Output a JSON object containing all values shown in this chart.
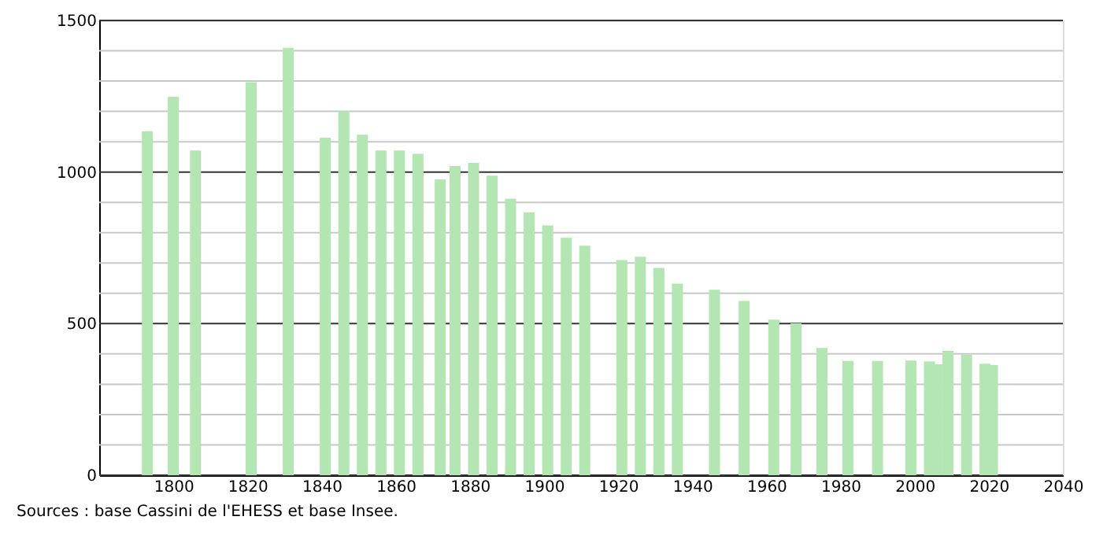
{
  "chart_data": {
    "type": "bar",
    "x": [
      1793,
      1800,
      1806,
      1821,
      1831,
      1841,
      1846,
      1851,
      1856,
      1861,
      1866,
      1872,
      1876,
      1881,
      1886,
      1891,
      1896,
      1901,
      1906,
      1911,
      1921,
      1926,
      1931,
      1936,
      1946,
      1954,
      1962,
      1968,
      1975,
      1982,
      1990,
      1999,
      2004,
      2006,
      2009,
      2014,
      2019,
      2021
    ],
    "values": [
      1135,
      1248,
      1071,
      1296,
      1410,
      1113,
      1201,
      1123,
      1071,
      1071,
      1060,
      976,
      1020,
      1030,
      988,
      912,
      867,
      824,
      783,
      757,
      710,
      721,
      684,
      632,
      612,
      575,
      513,
      501,
      420,
      377,
      377,
      378,
      375,
      366,
      410,
      397,
      368,
      363
    ],
    "color": "#b3e6b3",
    "xlim": [
      1780,
      2040
    ],
    "xticks": [
      1800,
      1820,
      1840,
      1860,
      1880,
      1900,
      1920,
      1940,
      1960,
      1980,
      2000,
      2020,
      2040
    ],
    "ylim": [
      0,
      1500
    ],
    "yticks": [
      0,
      {
        "value": 100,
        "label": null
      },
      {
        "value": 200,
        "label": null
      },
      {
        "value": 300,
        "label": null
      },
      {
        "value": 400,
        "label": null
      },
      500,
      {
        "value": 600,
        "label": null
      },
      {
        "value": 700,
        "label": null
      },
      {
        "value": 800,
        "label": null
      },
      {
        "value": 900,
        "label": null
      },
      1000,
      {
        "value": 1100,
        "label": null
      },
      {
        "value": 1200,
        "label": null
      },
      {
        "value": 1300,
        "label": null
      },
      {
        "value": 1400,
        "label": null
      },
      1500
    ],
    "grid": "y",
    "annotations": [
      "Sources : base Cassini de l'EHESS et base Insee."
    ]
  }
}
